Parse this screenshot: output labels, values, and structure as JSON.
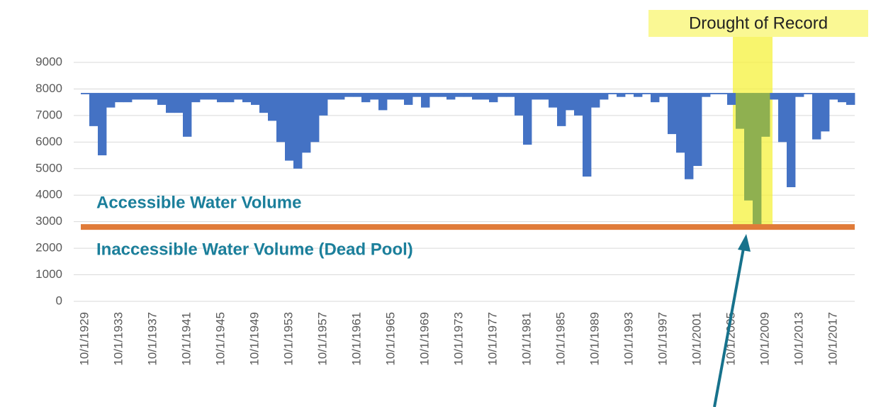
{
  "chart_data": {
    "type": "column",
    "categories": [
      "10/1/1929",
      null,
      null,
      null,
      "10/1/1933",
      null,
      null,
      null,
      "10/1/1937",
      null,
      null,
      null,
      "10/1/1941",
      null,
      null,
      null,
      "10/1/1945",
      null,
      null,
      null,
      "10/1/1949",
      null,
      null,
      null,
      "10/1/1953",
      null,
      null,
      null,
      "10/1/1957",
      null,
      null,
      null,
      "10/1/1961",
      null,
      null,
      null,
      "10/1/1965",
      null,
      null,
      null,
      "10/1/1969",
      null,
      null,
      null,
      "10/1/1973",
      null,
      null,
      null,
      "10/1/1977",
      null,
      null,
      null,
      "10/1/1981",
      null,
      null,
      null,
      "10/1/1985",
      null,
      null,
      null,
      "10/1/1989",
      null,
      null,
      null,
      "10/1/1993",
      null,
      null,
      null,
      "10/1/1997",
      null,
      null,
      null,
      "10/1/2001",
      null,
      null,
      null,
      "10/1/2005",
      null,
      null,
      null,
      "10/1/2009",
      null,
      null,
      null,
      "10/1/2013",
      null,
      null,
      null,
      "10/1/2017",
      null,
      null
    ],
    "series": [
      {
        "color": "#4472c4",
        "values": [
          7800,
          6600,
          5500,
          7300,
          7500,
          7500,
          7600,
          7600,
          7600,
          7400,
          7100,
          7100,
          6200,
          7500,
          7600,
          7600,
          7500,
          7500,
          7600,
          7500,
          7400,
          7100,
          6800,
          6000,
          5300,
          5000,
          5600,
          6000,
          7000,
          7600,
          7600,
          7700,
          7700,
          7500,
          7600,
          7200,
          7600,
          7600,
          7400,
          7700,
          7300,
          7700,
          7700,
          7600,
          7700,
          7700,
          7600,
          7600,
          7500,
          7700,
          7700,
          7000,
          5900,
          7600,
          7600,
          7300,
          6600,
          7200,
          7000,
          4700,
          7300,
          7600,
          7800,
          7700,
          7800,
          7700,
          7800,
          7500,
          7700,
          6300,
          5600,
          4600,
          5100,
          7700,
          7800,
          7800,
          7400,
          null,
          null,
          null,
          null,
          7600,
          6000,
          4300,
          7700,
          7800,
          6100,
          6400,
          7600,
          7500,
          7400
        ]
      },
      {
        "color": "#8fb050",
        "values": [
          null,
          null,
          null,
          null,
          null,
          null,
          null,
          null,
          null,
          null,
          null,
          null,
          null,
          null,
          null,
          null,
          null,
          null,
          null,
          null,
          null,
          null,
          null,
          null,
          null,
          null,
          null,
          null,
          null,
          null,
          null,
          null,
          null,
          null,
          null,
          null,
          null,
          null,
          null,
          null,
          null,
          null,
          null,
          null,
          null,
          null,
          null,
          null,
          null,
          null,
          null,
          null,
          null,
          null,
          null,
          null,
          null,
          null,
          null,
          null,
          null,
          null,
          null,
          null,
          null,
          null,
          null,
          null,
          null,
          null,
          null,
          null,
          null,
          null,
          null,
          null,
          null,
          6500,
          3800,
          2900,
          6200,
          null,
          null,
          null,
          null,
          null,
          null,
          null,
          null,
          null,
          null
        ]
      }
    ],
    "fill_to": 7850,
    "ylim": [
      0,
      9000
    ],
    "yticks": [
      0,
      1000,
      2000,
      3000,
      4000,
      5000,
      6000,
      7000,
      8000,
      9000
    ],
    "grid": true,
    "dead_pool": {
      "value": 2800,
      "color": "#e07b39",
      "above_label": "Accessible Water Volume",
      "below_label": "Inaccessible Water Volume (Dead Pool)"
    },
    "highlight": {
      "label": "Drought of Record",
      "color": "#f5f23c"
    }
  }
}
